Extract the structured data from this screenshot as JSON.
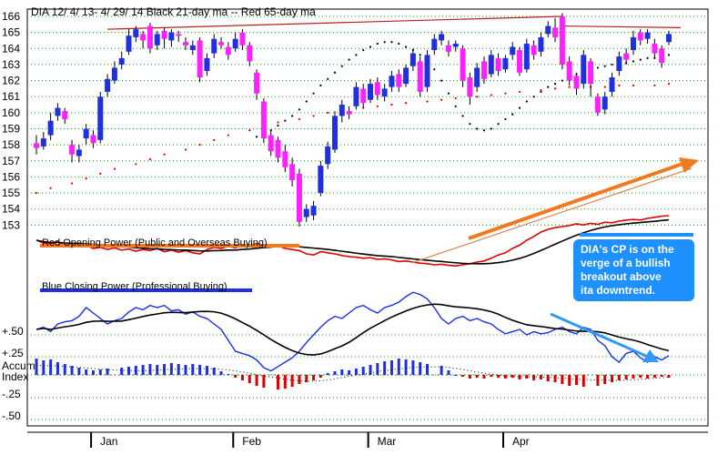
{
  "chart_data": {
    "type": "candlestick",
    "title": "DIA   12/ 4/ 13- 4/ 29/ 14   Black 21-day ma --  Red 65-day ma",
    "title_parts": {
      "ticker": "DIA",
      "range": "12/ 4/ 13- 4/ 29/ 14",
      "ma_text": "Black 21-day ma --  Red 65-day ma"
    },
    "price_axis": {
      "ylim": [
        152,
        166
      ],
      "tick_labels": [
        "166",
        "165",
        "164",
        "163",
        "162",
        "161",
        "160",
        "159",
        "158",
        "157",
        "156",
        "155",
        "154",
        "153"
      ]
    },
    "indicator_axis": {
      "tick_labels": [
        "+.50",
        "+.25",
        "Accum\nIndex",
        "-.25",
        "-.50"
      ]
    },
    "x_tick_labels": [
      "Jan",
      "Feb",
      "Mar",
      "Apr"
    ],
    "candles": [
      {
        "o": 158.1,
        "c": 157.8,
        "h": 158.6,
        "l": 157.4
      },
      {
        "o": 157.9,
        "c": 158.4,
        "h": 158.8,
        "l": 157.7
      },
      {
        "o": 158.6,
        "c": 159.5,
        "h": 160.0,
        "l": 158.3
      },
      {
        "o": 159.8,
        "c": 160.3,
        "h": 160.6,
        "l": 159.5
      },
      {
        "o": 160.1,
        "c": 159.6,
        "h": 160.3,
        "l": 159.3
      },
      {
        "o": 158.0,
        "c": 157.4,
        "h": 158.3,
        "l": 156.9
      },
      {
        "o": 157.3,
        "c": 157.7,
        "h": 158.0,
        "l": 156.9
      },
      {
        "o": 158.4,
        "c": 159.0,
        "h": 159.3,
        "l": 158.0
      },
      {
        "o": 158.6,
        "c": 158.1,
        "h": 158.9,
        "l": 157.8
      },
      {
        "o": 158.3,
        "c": 161.0,
        "h": 161.3,
        "l": 158.1
      },
      {
        "o": 161.3,
        "c": 162.1,
        "h": 162.4,
        "l": 161.0
      },
      {
        "o": 162.0,
        "c": 162.8,
        "h": 163.2,
        "l": 161.8
      },
      {
        "o": 163.0,
        "c": 163.4,
        "h": 163.8,
        "l": 162.7
      },
      {
        "o": 163.8,
        "c": 164.8,
        "h": 165.2,
        "l": 163.6
      },
      {
        "o": 164.7,
        "c": 165.2,
        "h": 165.4,
        "l": 164.4
      },
      {
        "o": 164.9,
        "c": 164.5,
        "h": 165.1,
        "l": 164.0
      },
      {
        "o": 165.4,
        "c": 164.0,
        "h": 165.6,
        "l": 163.7
      },
      {
        "o": 164.2,
        "c": 164.9,
        "h": 165.1,
        "l": 163.9
      },
      {
        "o": 165.1,
        "c": 164.6,
        "h": 165.3,
        "l": 164.0
      },
      {
        "o": 164.5,
        "c": 165.0,
        "h": 165.2,
        "l": 164.1
      },
      {
        "o": 164.9,
        "c": 164.8,
        "h": 165.1,
        "l": 164.4
      },
      {
        "o": 164.4,
        "c": 164.2,
        "h": 164.7,
        "l": 163.9
      },
      {
        "o": 163.9,
        "c": 164.2,
        "h": 164.5,
        "l": 163.6
      },
      {
        "o": 164.5,
        "c": 162.2,
        "h": 164.7,
        "l": 161.9
      },
      {
        "o": 162.6,
        "c": 163.4,
        "h": 163.7,
        "l": 162.3
      },
      {
        "o": 163.7,
        "c": 164.6,
        "h": 164.9,
        "l": 163.4
      },
      {
        "o": 164.4,
        "c": 164.2,
        "h": 164.7,
        "l": 164.0
      },
      {
        "o": 164.1,
        "c": 163.6,
        "h": 164.4,
        "l": 163.3
      },
      {
        "o": 164.0,
        "c": 164.6,
        "h": 165.0,
        "l": 163.8
      },
      {
        "o": 165.0,
        "c": 164.2,
        "h": 165.2,
        "l": 163.9
      },
      {
        "o": 164.2,
        "c": 163.2,
        "h": 164.4,
        "l": 162.9
      },
      {
        "o": 162.5,
        "c": 161.2,
        "h": 162.7,
        "l": 160.8
      },
      {
        "o": 160.7,
        "c": 158.4,
        "h": 160.9,
        "l": 158.1
      },
      {
        "o": 158.6,
        "c": 157.6,
        "h": 158.9,
        "l": 157.3
      },
      {
        "o": 158.3,
        "c": 157.2,
        "h": 158.5,
        "l": 156.9
      },
      {
        "o": 157.6,
        "c": 156.6,
        "h": 158.0,
        "l": 156.3
      },
      {
        "o": 156.8,
        "c": 155.8,
        "h": 157.2,
        "l": 155.4
      },
      {
        "o": 156.2,
        "c": 153.2,
        "h": 156.5,
        "l": 152.9
      },
      {
        "o": 153.5,
        "c": 154.0,
        "h": 154.3,
        "l": 153.2
      },
      {
        "o": 153.6,
        "c": 154.2,
        "h": 154.5,
        "l": 153.3
      },
      {
        "o": 155.0,
        "c": 156.7,
        "h": 157.0,
        "l": 154.8
      },
      {
        "o": 156.8,
        "c": 157.9,
        "h": 158.2,
        "l": 156.5
      },
      {
        "o": 157.7,
        "c": 159.8,
        "h": 160.1,
        "l": 157.5
      },
      {
        "o": 159.8,
        "c": 160.5,
        "h": 160.8,
        "l": 159.4
      },
      {
        "o": 160.1,
        "c": 159.9,
        "h": 160.4,
        "l": 159.6
      },
      {
        "o": 160.4,
        "c": 161.6,
        "h": 161.9,
        "l": 160.2
      },
      {
        "o": 161.5,
        "c": 160.6,
        "h": 161.8,
        "l": 160.3
      },
      {
        "o": 160.8,
        "c": 161.8,
        "h": 162.1,
        "l": 160.6
      },
      {
        "o": 161.9,
        "c": 161.1,
        "h": 162.2,
        "l": 160.8
      },
      {
        "o": 161.0,
        "c": 161.5,
        "h": 161.8,
        "l": 160.7
      },
      {
        "o": 161.6,
        "c": 162.3,
        "h": 162.6,
        "l": 161.3
      },
      {
        "o": 162.4,
        "c": 161.6,
        "h": 162.7,
        "l": 161.3
      },
      {
        "o": 161.8,
        "c": 162.8,
        "h": 163.0,
        "l": 161.6
      },
      {
        "o": 162.9,
        "c": 163.7,
        "h": 164.0,
        "l": 162.6
      },
      {
        "o": 163.2,
        "c": 161.3,
        "h": 163.5,
        "l": 161.0
      },
      {
        "o": 161.6,
        "c": 163.6,
        "h": 163.9,
        "l": 161.3
      },
      {
        "o": 163.9,
        "c": 164.6,
        "h": 164.9,
        "l": 163.6
      },
      {
        "o": 164.5,
        "c": 164.9,
        "h": 165.1,
        "l": 164.2
      },
      {
        "o": 164.2,
        "c": 163.8,
        "h": 164.5,
        "l": 163.5
      },
      {
        "o": 164.1,
        "c": 164.3,
        "h": 164.5,
        "l": 163.8
      },
      {
        "o": 164.0,
        "c": 162.0,
        "h": 164.2,
        "l": 161.6
      },
      {
        "o": 162.2,
        "c": 161.0,
        "h": 162.5,
        "l": 160.5
      },
      {
        "o": 161.6,
        "c": 162.8,
        "h": 163.1,
        "l": 161.3
      },
      {
        "o": 163.2,
        "c": 162.1,
        "h": 163.5,
        "l": 161.8
      },
      {
        "o": 162.4,
        "c": 163.6,
        "h": 163.9,
        "l": 162.2
      },
      {
        "o": 163.4,
        "c": 162.6,
        "h": 163.7,
        "l": 162.3
      },
      {
        "o": 162.7,
        "c": 163.4,
        "h": 163.6,
        "l": 162.5
      },
      {
        "o": 163.6,
        "c": 164.1,
        "h": 164.4,
        "l": 163.3
      },
      {
        "o": 163.9,
        "c": 162.5,
        "h": 164.1,
        "l": 162.3
      },
      {
        "o": 162.7,
        "c": 164.3,
        "h": 164.6,
        "l": 162.5
      },
      {
        "o": 164.2,
        "c": 163.6,
        "h": 164.5,
        "l": 163.3
      },
      {
        "o": 163.8,
        "c": 164.7,
        "h": 165.0,
        "l": 163.5
      },
      {
        "o": 164.9,
        "c": 165.4,
        "h": 165.7,
        "l": 164.7
      },
      {
        "o": 165.3,
        "c": 164.7,
        "h": 165.9,
        "l": 164.4
      },
      {
        "o": 166.0,
        "c": 163.0,
        "h": 166.2,
        "l": 162.7
      },
      {
        "o": 163.2,
        "c": 162.0,
        "h": 163.5,
        "l": 161.7
      },
      {
        "o": 162.3,
        "c": 161.5,
        "h": 162.5,
        "l": 161.1
      },
      {
        "o": 161.8,
        "c": 163.6,
        "h": 163.9,
        "l": 161.5
      },
      {
        "o": 163.2,
        "c": 161.8,
        "h": 163.4,
        "l": 161.0
      },
      {
        "o": 161.0,
        "c": 160.0,
        "h": 161.2,
        "l": 159.8
      },
      {
        "o": 160.2,
        "c": 161.0,
        "h": 161.3,
        "l": 159.9
      },
      {
        "o": 161.3,
        "c": 162.2,
        "h": 162.5,
        "l": 161.0
      },
      {
        "o": 162.6,
        "c": 163.5,
        "h": 163.8,
        "l": 162.3
      },
      {
        "o": 163.7,
        "c": 163.3,
        "h": 164.0,
        "l": 163.0
      },
      {
        "o": 163.9,
        "c": 164.7,
        "h": 165.1,
        "l": 163.6
      },
      {
        "o": 165.0,
        "c": 164.5,
        "h": 165.2,
        "l": 164.2
      },
      {
        "o": 164.6,
        "c": 165.0,
        "h": 165.2,
        "l": 164.3
      },
      {
        "o": 164.3,
        "c": 163.7,
        "h": 164.6,
        "l": 163.4
      },
      {
        "o": 164.0,
        "c": 163.1,
        "h": 164.2,
        "l": 162.8
      },
      {
        "o": 164.4,
        "c": 164.9,
        "h": 165.1,
        "l": 164.2
      }
    ],
    "ma21": [
      158.5,
      158.7,
      158.9,
      159.2,
      159.5,
      159.8,
      160.2,
      160.7,
      161.2,
      161.7,
      162.1,
      162.5,
      162.9,
      163.3,
      163.6,
      163.9,
      164.1,
      164.3,
      164.4,
      164.4,
      164.3,
      164.1,
      163.9,
      163.6,
      163.2,
      162.7,
      162.0,
      161.2,
      160.4,
      159.8,
      159.3,
      159.0,
      158.9,
      159.0,
      159.3,
      159.6,
      159.9,
      160.3,
      160.7,
      161.0,
      161.3,
      161.6,
      161.8,
      162.0,
      162.2,
      162.4,
      162.6,
      162.7,
      162.8,
      162.9,
      163.0,
      163.1,
      163.1,
      163.2,
      163.3,
      163.4,
      163.4,
      163.5,
      163.6
    ],
    "ma65": [
      155.0,
      155.3,
      155.6,
      155.9,
      156.2,
      156.5,
      156.8,
      157.1,
      157.4,
      157.7,
      158.0,
      158.3,
      158.6,
      158.9,
      159.2,
      159.4,
      159.6,
      159.8,
      160.0,
      160.2,
      160.3,
      160.4,
      160.5,
      160.6,
      160.7,
      160.8,
      160.9,
      161.0,
      161.1,
      161.2,
      161.3,
      161.4,
      161.5,
      161.6,
      161.6,
      161.6,
      161.7,
      161.7,
      161.7,
      161.8
    ],
    "panels": {
      "opening_power_label": "Red Opening Power (Public and Overseas Buying)",
      "closing_power_label": "Blue Closing Power (Professional Buying)"
    },
    "opening_power": [
      0.55,
      0.5,
      0.48,
      0.52,
      0.45,
      0.47,
      0.43,
      0.46,
      0.4,
      0.42,
      0.38,
      0.41,
      0.37,
      0.39,
      0.35,
      0.38,
      0.36,
      0.4,
      0.34,
      0.37,
      0.33,
      0.36,
      0.32,
      0.3,
      0.38,
      0.42,
      0.4,
      0.44,
      0.41,
      0.47,
      0.45,
      0.49,
      0.46,
      0.43,
      0.45,
      0.4,
      0.38,
      0.36,
      0.3,
      0.28,
      0.34,
      0.32,
      0.3,
      0.27,
      0.25,
      0.24,
      0.22,
      0.23,
      0.2,
      0.21,
      0.19,
      0.16,
      0.17,
      0.15,
      0.13,
      0.12,
      0.1,
      0.11,
      0.09,
      0.08,
      0.1,
      0.12,
      0.15,
      0.17,
      0.22,
      0.28,
      0.32,
      0.4,
      0.46,
      0.55,
      0.62,
      0.7,
      0.75,
      0.78,
      0.8,
      0.82,
      0.85,
      0.83,
      0.86,
      0.84,
      0.88,
      0.87,
      0.9,
      0.92,
      0.93,
      0.92,
      0.95,
      0.97,
      0.99,
      1.0
    ],
    "closing_power": [
      0.4,
      0.42,
      0.38,
      0.45,
      0.47,
      0.48,
      0.52,
      0.6,
      0.55,
      0.5,
      0.45,
      0.48,
      0.5,
      0.56,
      0.6,
      0.58,
      0.62,
      0.6,
      0.62,
      0.57,
      0.58,
      0.54,
      0.56,
      0.52,
      0.5,
      0.45,
      0.4,
      0.3,
      0.2,
      0.18,
      0.16,
      0.12,
      0.05,
      0.02,
      0.06,
      0.1,
      0.14,
      0.2,
      0.28,
      0.35,
      0.42,
      0.48,
      0.52,
      0.5,
      0.55,
      0.6,
      0.62,
      0.58,
      0.55,
      0.6,
      0.62,
      0.65,
      0.7,
      0.74,
      0.72,
      0.68,
      0.6,
      0.5,
      0.45,
      0.5,
      0.52,
      0.48,
      0.5,
      0.47,
      0.45,
      0.4,
      0.36,
      0.38,
      0.4,
      0.35,
      0.38,
      0.36,
      0.37,
      0.4,
      0.42,
      0.38,
      0.36,
      0.42,
      0.4,
      0.3,
      0.25,
      0.15,
      0.1,
      0.18,
      0.2,
      0.14,
      0.1,
      0.15,
      0.12,
      0.16
    ],
    "accum_index": [
      0.18,
      0.16,
      0.17,
      0.14,
      0.12,
      0.1,
      0.08,
      0.06,
      0.05,
      0.06,
      0.07,
      0.08,
      0.09,
      0.1,
      0.11,
      0.12,
      0.11,
      0.12,
      0.13,
      0.12,
      0.11,
      0.12,
      0.11,
      0.1,
      0.08,
      0.04,
      0.01,
      -0.03,
      -0.06,
      -0.09,
      -0.12,
      -0.14,
      -0.16,
      -0.15,
      -0.13,
      -0.1,
      -0.08,
      -0.06,
      -0.03,
      0.02,
      0.04,
      0.06,
      0.05,
      0.07,
      0.09,
      0.11,
      0.13,
      0.15,
      0.16,
      0.18,
      0.17,
      0.16,
      0.14,
      0.12,
      0.1,
      0.05,
      0.0,
      -0.02,
      -0.04,
      -0.03,
      -0.04,
      -0.02,
      -0.03,
      -0.04,
      -0.03,
      -0.05,
      -0.04,
      -0.06,
      -0.05,
      -0.07,
      -0.08,
      -0.1,
      -0.12,
      -0.11,
      -0.13,
      -0.12,
      -0.1,
      -0.08,
      -0.06,
      -0.05,
      -0.04,
      -0.03,
      -0.04,
      -0.03,
      -0.02,
      -0.03
    ],
    "annotation": "DIA's CP is on the verge of a bullish breakout above ita downtrend.",
    "colors": {
      "up_candle": "#2030e0",
      "down_candle": "#ff20ff",
      "ma21": "#000000",
      "ma65": "#e00000",
      "opening_power": "#e00000",
      "closing_power": "#1a2ee8",
      "accum_pos": "#2030e0",
      "accum_neg": "#e00000",
      "trend_orange": "#f07a20",
      "trend_blue_arrow": "#3399ee",
      "annotation_bg": "#1e90ff",
      "grid": "#2a8a2a",
      "resistance": "#b82020"
    }
  }
}
